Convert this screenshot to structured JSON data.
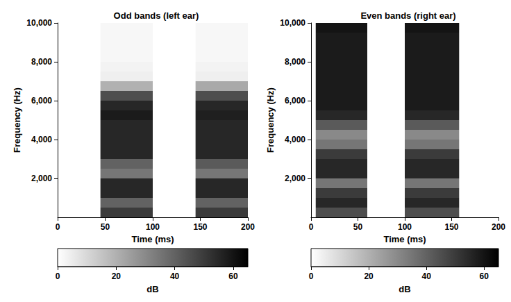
{
  "chart_data": [
    {
      "type": "heatmap",
      "title": "Odd bands (left ear)",
      "x_label": "Time (ms)",
      "y_label": "Frequency (Hz)",
      "xlim": [
        0,
        200
      ],
      "xticks": [
        0,
        50,
        100,
        150,
        200
      ],
      "ylim": [
        0,
        10000
      ],
      "yticks": [
        2000,
        4000,
        6000,
        8000,
        10000
      ],
      "grid": false,
      "time_segments": [
        [
          45,
          100
        ],
        [
          145,
          200
        ]
      ],
      "freq_bins": [
        0,
        500,
        1000,
        1500,
        2000,
        2500,
        3000,
        3500,
        4000,
        4500,
        5000,
        5500,
        6000,
        6500,
        7000,
        7500,
        8000,
        8500,
        9000,
        9500,
        10000
      ],
      "values": [
        [
          50,
          40,
          55,
          55,
          35,
          40,
          55,
          55,
          55,
          55,
          58,
          55,
          45,
          20,
          4,
          3,
          2,
          2,
          2,
          2
        ],
        [
          50,
          40,
          55,
          55,
          35,
          42,
          55,
          55,
          55,
          55,
          57,
          55,
          45,
          22,
          4,
          3,
          2,
          2,
          2,
          2
        ]
      ],
      "colorbar": {
        "label": "dB",
        "range": [
          0,
          65
        ],
        "ticks": [
          0,
          20,
          40,
          60
        ]
      }
    },
    {
      "type": "heatmap",
      "title": "Even bands (right ear)",
      "x_label": "Time (ms)",
      "y_label": "Frequency (Hz)",
      "xlim": [
        0,
        200
      ],
      "xticks": [
        0,
        50,
        100,
        150,
        200
      ],
      "ylim": [
        0,
        10000
      ],
      "yticks": [
        2000,
        4000,
        6000,
        8000,
        10000
      ],
      "grid": false,
      "time_segments": [
        [
          5,
          60
        ],
        [
          100,
          158
        ]
      ],
      "freq_bins": [
        0,
        500,
        1000,
        1500,
        2000,
        2500,
        3000,
        3500,
        4000,
        4500,
        5000,
        5500,
        6000,
        6500,
        7000,
        7500,
        8000,
        8500,
        9000,
        9500,
        10000
      ],
      "values": [
        [
          45,
          55,
          50,
          35,
          55,
          55,
          50,
          35,
          30,
          42,
          55,
          58,
          58,
          58,
          58,
          58,
          58,
          58,
          58,
          60
        ],
        [
          45,
          55,
          50,
          35,
          55,
          55,
          50,
          35,
          30,
          42,
          55,
          58,
          58,
          58,
          58,
          58,
          58,
          58,
          58,
          60
        ]
      ],
      "colorbar": {
        "label": "dB",
        "range": [
          0,
          65
        ],
        "ticks": [
          0,
          20,
          40,
          60
        ]
      }
    }
  ]
}
